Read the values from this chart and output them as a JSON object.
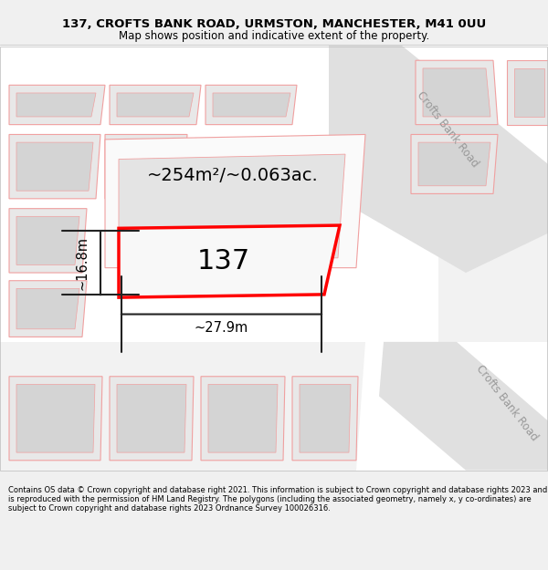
{
  "title_line1": "137, CROFTS BANK ROAD, URMSTON, MANCHESTER, M41 0UU",
  "title_line2": "Map shows position and indicative extent of the property.",
  "footer_text": "Contains OS data © Crown copyright and database right 2021. This information is subject to Crown copyright and database rights 2023 and is reproduced with the permission of HM Land Registry. The polygons (including the associated geometry, namely x, y co-ordinates) are subject to Crown copyright and database rights 2023 Ordnance Survey 100026316.",
  "area_label": "~254m²/~0.063ac.",
  "number_label": "137",
  "width_label": "~27.9m",
  "height_label": "~16.8m",
  "bg_color": "#f0f0f0",
  "map_bg_color": "#ffffff",
  "fill_light_gray": "#e8e8e8",
  "fill_mid_gray": "#d4d4d4",
  "fill_dark_gray": "#c8c8c8",
  "road_fill": "#e0e0e0",
  "plot_outline": "#ff0000",
  "plot_fill": "#f8f8f8",
  "pink_outline": "#f0a0a0",
  "pink_fill": "#fafafa",
  "dim_color": "#222222",
  "label_color": "#777777",
  "road_label": "Crofts Bank Road"
}
